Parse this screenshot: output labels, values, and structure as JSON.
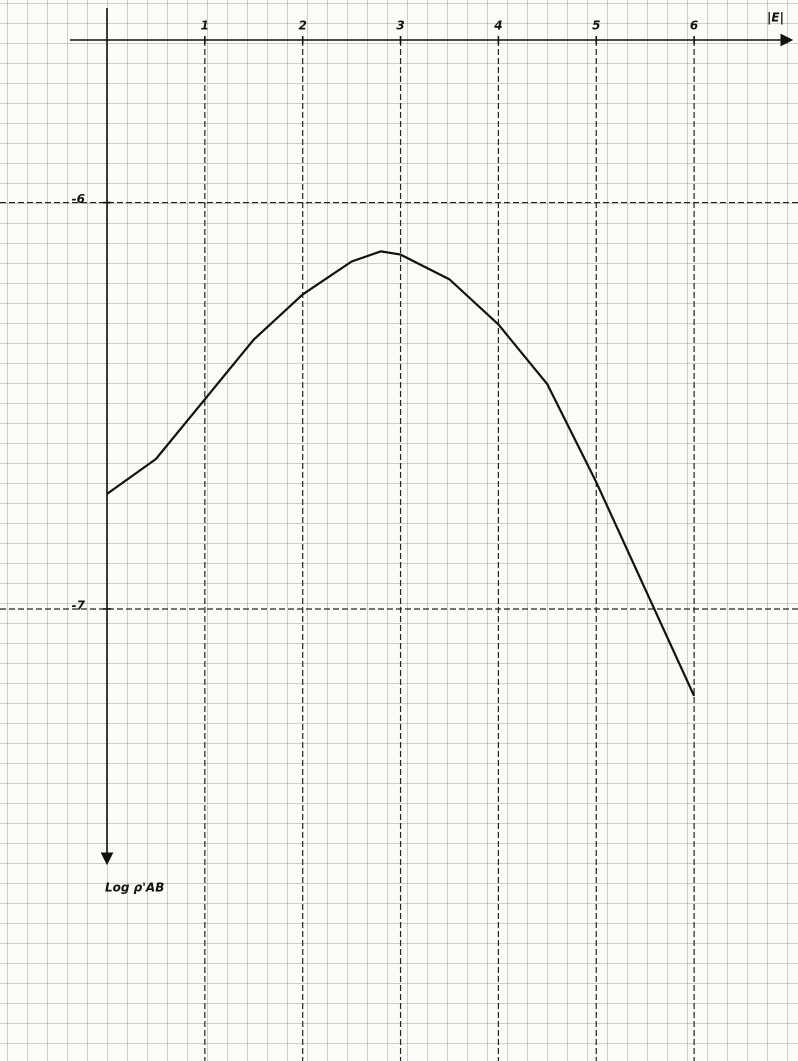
{
  "chart_data": {
    "type": "line",
    "x_label": "|E|",
    "y_label": "Log ρ'AB",
    "x": [
      0,
      0.5,
      1,
      1.5,
      2,
      2.5,
      2.8,
      3,
      3.5,
      4,
      4.5,
      5,
      5.5,
      6
    ],
    "series": [
      {
        "name": null,
        "color": "#111111",
        "values": [
          -6.717,
          -6.631,
          -6.484,
          -6.337,
          -6.226,
          -6.145,
          -6.12,
          -6.128,
          -6.189,
          -6.3,
          -6.447,
          -6.688,
          -6.951,
          -7.214
        ]
      }
    ],
    "xlim": [
      0,
      6.98
    ],
    "xticks": [
      1,
      2,
      3,
      4,
      5,
      6
    ],
    "ylim": [
      -7.63,
      -5.6
    ],
    "yticks": [
      -6,
      -7
    ],
    "grid": true
  }
}
